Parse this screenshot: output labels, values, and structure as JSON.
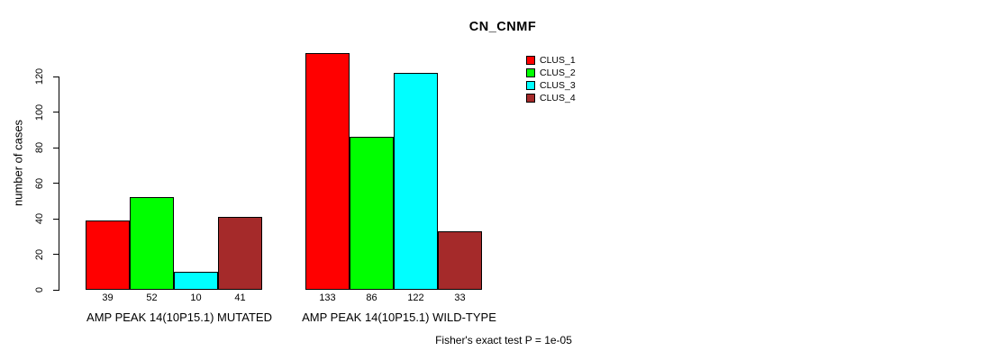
{
  "chart_data": {
    "type": "bar",
    "title": "CN_CNMF",
    "ylabel": "number of cases",
    "xlabel": "",
    "yticks": [
      0,
      20,
      40,
      60,
      80,
      100,
      120
    ],
    "ylim": [
      0,
      140
    ],
    "grid": false,
    "legend_position": "top-right",
    "categories": [
      "AMP PEAK 14(10P15.1) MUTATED",
      "AMP PEAK 14(10P15.1) WILD-TYPE"
    ],
    "series": [
      {
        "name": "CLUS_1",
        "color": "#FF0000",
        "values": [
          39,
          133
        ]
      },
      {
        "name": "CLUS_2",
        "color": "#00FF00",
        "values": [
          52,
          86
        ]
      },
      {
        "name": "CLUS_3",
        "color": "#00FFFF",
        "values": [
          10,
          122
        ]
      },
      {
        "name": "CLUS_4",
        "color": "#A52A2A",
        "values": [
          41,
          33
        ]
      }
    ],
    "bar_value_labels": [
      [
        39,
        52,
        10,
        41
      ],
      [
        133,
        86,
        122,
        33
      ]
    ],
    "footnote": "Fisher's exact test P = 1e-05"
  }
}
